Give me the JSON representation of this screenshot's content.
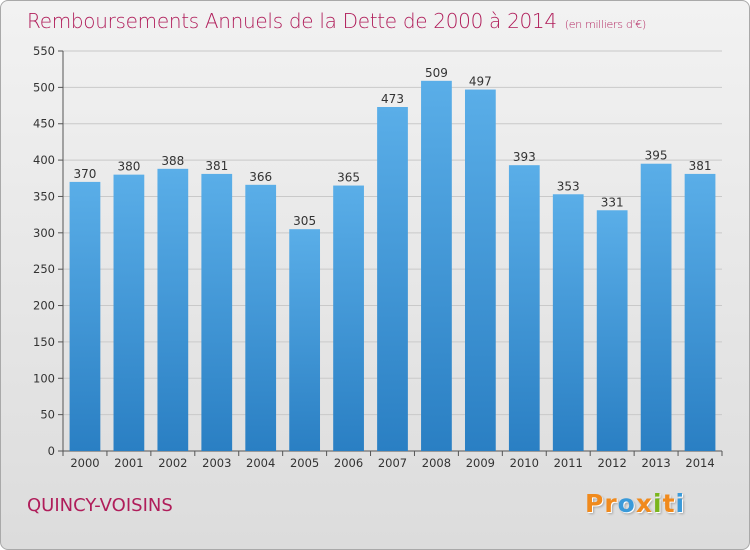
{
  "header": {
    "title": "Remboursements Annuels de la Dette de 2000 à 2014",
    "subtitle": "(en milliers d'€)"
  },
  "footer": {
    "place": "QUINCY-VOISINS",
    "logo_letters": [
      "P",
      "r",
      "o",
      "x",
      "i",
      "t",
      "i"
    ]
  },
  "colors": {
    "title": "#b01d5a",
    "bar_top": "#5aaee8",
    "bar_bottom": "#2a7fc3",
    "logo": [
      "#f08a1d",
      "#f08a1d",
      "#3a9ad9",
      "#f08a1d",
      "#7ab51d",
      "#f08a1d",
      "#3a9ad9"
    ]
  },
  "chart_data": {
    "type": "bar",
    "title": "Remboursements Annuels de la Dette de 2000 à 2014",
    "subtitle": "(en milliers d'€)",
    "categories": [
      "2000",
      "2001",
      "2002",
      "2003",
      "2004",
      "2005",
      "2006",
      "2007",
      "2008",
      "2009",
      "2010",
      "2011",
      "2012",
      "2013",
      "2014"
    ],
    "values": [
      370,
      380,
      388,
      381,
      366,
      305,
      365,
      473,
      509,
      497,
      393,
      353,
      331,
      395,
      381
    ],
    "ylim": [
      0,
      550
    ],
    "yticks": [
      0,
      50,
      100,
      150,
      200,
      250,
      300,
      350,
      400,
      450,
      500,
      550
    ],
    "grid": true,
    "data_labels": true
  }
}
